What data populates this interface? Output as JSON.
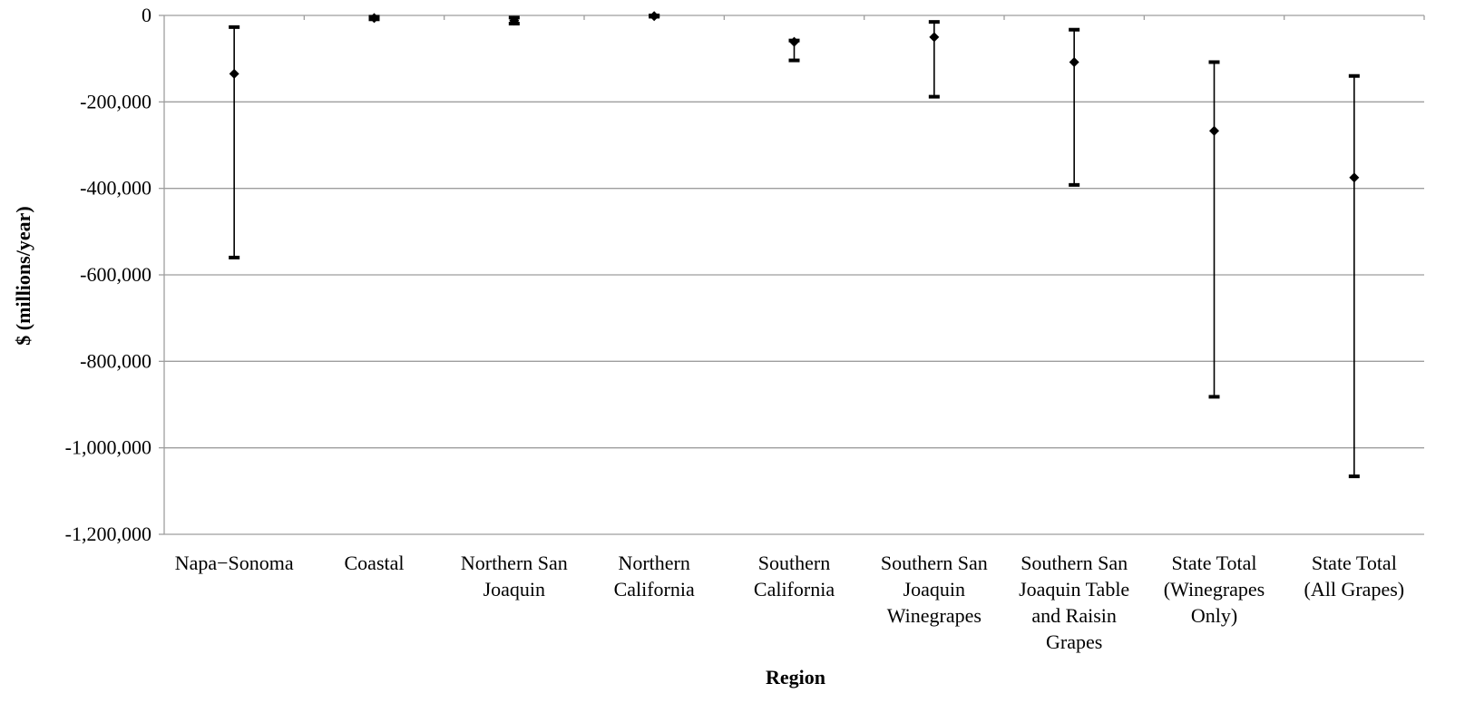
{
  "chart_data": {
    "type": "range_with_point",
    "title": "",
    "xlabel": "Region",
    "ylabel": "$ (millions/year)",
    "ylim": [
      -1200000,
      0
    ],
    "yticks": [
      0,
      -200000,
      -400000,
      -600000,
      -800000,
      -1000000,
      -1200000
    ],
    "ytick_labels": [
      "0",
      "-200,000",
      "-400,000",
      "-600,000",
      "-800,000",
      "-1,000,000",
      "-1,200,000"
    ],
    "grid": true,
    "colors": {
      "gridline": "#9e9e9e",
      "mark": "#000000"
    },
    "categories": [
      {
        "label_lines": [
          "Napa−Sonoma"
        ],
        "low": -560000,
        "mid": -135000,
        "high": -27000
      },
      {
        "label_lines": [
          "Coastal"
        ],
        "low": -9000,
        "mid": -6000,
        "high": -3000
      },
      {
        "label_lines": [
          "Northern San",
          "Joaquin"
        ],
        "low": -19000,
        "mid": -12000,
        "high": -5000
      },
      {
        "label_lines": [
          "Northern",
          "California"
        ],
        "low": -3000,
        "mid": -1500,
        "high": 0
      },
      {
        "label_lines": [
          "Southern",
          "California"
        ],
        "low": -104000,
        "mid": -61000,
        "high": -58000
      },
      {
        "label_lines": [
          "Southern San",
          "Joaquin",
          "Winegrapes"
        ],
        "low": -188000,
        "mid": -50000,
        "high": -15000
      },
      {
        "label_lines": [
          "Southern San",
          "Joaquin Table",
          "and Raisin",
          "Grapes"
        ],
        "low": -392000,
        "mid": -108000,
        "high": -33000
      },
      {
        "label_lines": [
          "State Total",
          "(Winegrapes",
          "Only)"
        ],
        "low": -882000,
        "mid": -267000,
        "high": -108000
      },
      {
        "label_lines": [
          "State Total",
          "(All Grapes)"
        ],
        "low": -1066000,
        "mid": -375000,
        "high": -140000
      }
    ]
  }
}
